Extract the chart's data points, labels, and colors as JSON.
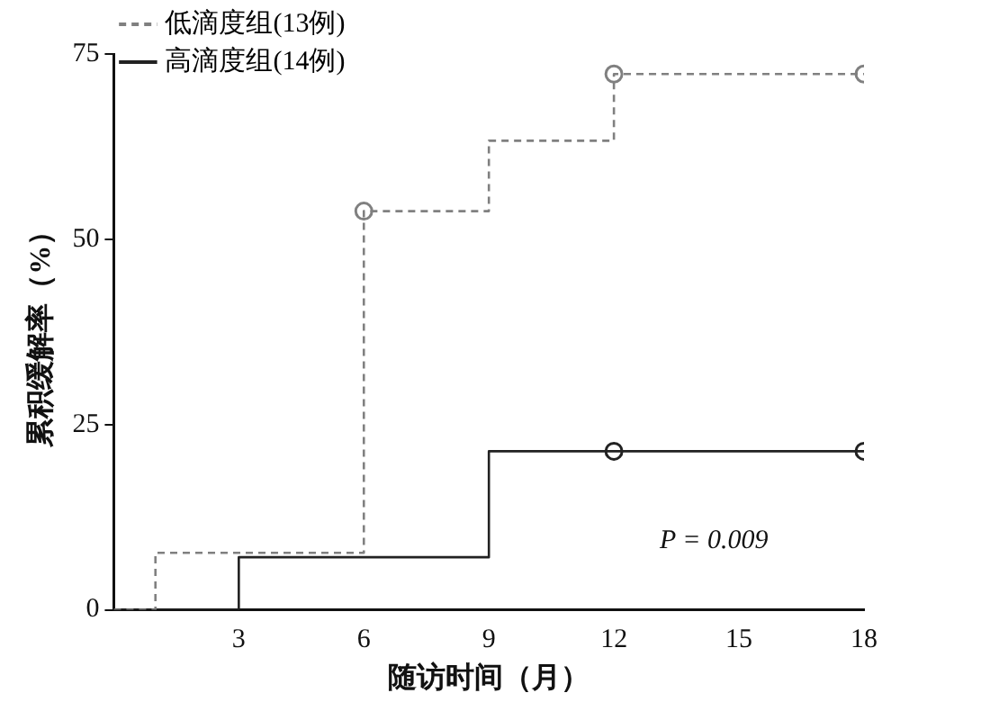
{
  "chart_data": {
    "type": "step",
    "xlabel": "随访时间（月）",
    "ylabel": "累积缓解率（%）",
    "xlim": [
      0,
      18
    ],
    "xticks": [
      3,
      6,
      9,
      12,
      15,
      18
    ],
    "ylim": [
      0,
      75
    ],
    "yticks": [
      0,
      25,
      50,
      75
    ],
    "grid": false,
    "legend": "top left",
    "series": [
      {
        "name": "低滴度组(13例)",
        "color": "#808080",
        "line_style": "dashed",
        "marker": "none",
        "x": [
          0,
          1,
          6,
          9,
          12,
          18
        ],
        "values": [
          0,
          7.7,
          53.8,
          63.3,
          72.3,
          72.3
        ]
      },
      {
        "name": "高滴度组(14例)",
        "color": "#222222",
        "line_style": "solid",
        "marker": "none",
        "x": [
          0,
          3,
          9,
          18
        ],
        "values": [
          0,
          7.1,
          21.4,
          21.4
        ]
      },
      {
        "type": "scatter",
        "color": "#808080",
        "marker": "circle",
        "x": [
          6,
          12,
          18
        ],
        "values": [
          53.8,
          72.3,
          72.3
        ]
      },
      {
        "type": "scatter",
        "color": "#222222",
        "marker": "circle",
        "x": [
          12,
          18
        ],
        "values": [
          21.4,
          21.4
        ]
      }
    ],
    "annotations": [
      "P = 0.009"
    ]
  }
}
